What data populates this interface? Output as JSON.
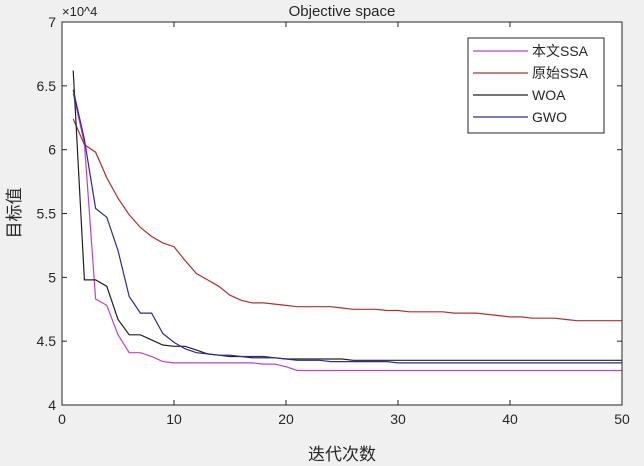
{
  "chart_data": {
    "type": "line",
    "title": "Objective space",
    "xlabel": "迭代次数",
    "ylabel": "目标值",
    "y_exponent_label": "×10^4",
    "xlim": [
      0,
      50
    ],
    "ylim": [
      4,
      7
    ],
    "xticks": [
      0,
      10,
      20,
      30,
      40,
      50
    ],
    "yticks": [
      4,
      4.5,
      5,
      5.5,
      6,
      6.5,
      7
    ],
    "ytick_labels": [
      "4",
      "4.5",
      "5",
      "5.5",
      "6",
      "6.5",
      "7"
    ],
    "legend_position": "top-right",
    "x": [
      1,
      2,
      3,
      4,
      5,
      6,
      7,
      8,
      9,
      10,
      11,
      12,
      13,
      14,
      15,
      16,
      17,
      18,
      19,
      20,
      21,
      22,
      23,
      24,
      25,
      26,
      27,
      28,
      29,
      30,
      31,
      32,
      33,
      34,
      35,
      36,
      37,
      38,
      39,
      40,
      41,
      42,
      43,
      44,
      45,
      46,
      47,
      48,
      49,
      50
    ],
    "series": [
      {
        "name": "本文SSA",
        "color": "#c040c8",
        "values": [
          6.44,
          6.05,
          4.83,
          4.78,
          4.55,
          4.41,
          4.41,
          4.38,
          4.34,
          4.33,
          4.33,
          4.33,
          4.33,
          4.33,
          4.33,
          4.33,
          4.33,
          4.32,
          4.32,
          4.3,
          4.27,
          4.27,
          4.27,
          4.27,
          4.27,
          4.27,
          4.27,
          4.27,
          4.27,
          4.27,
          4.27,
          4.27,
          4.27,
          4.27,
          4.27,
          4.27,
          4.27,
          4.27,
          4.27,
          4.27,
          4.27,
          4.27,
          4.27,
          4.27,
          4.27,
          4.27,
          4.27,
          4.27,
          4.27,
          4.27
        ]
      },
      {
        "name": "原始SSA",
        "color": "#b03030",
        "values": [
          6.24,
          6.04,
          5.98,
          5.78,
          5.62,
          5.49,
          5.39,
          5.32,
          5.27,
          5.24,
          5.13,
          5.03,
          4.98,
          4.93,
          4.86,
          4.82,
          4.8,
          4.8,
          4.79,
          4.78,
          4.77,
          4.77,
          4.77,
          4.77,
          4.76,
          4.75,
          4.75,
          4.75,
          4.74,
          4.74,
          4.73,
          4.73,
          4.73,
          4.73,
          4.72,
          4.72,
          4.72,
          4.71,
          4.7,
          4.69,
          4.69,
          4.68,
          4.68,
          4.68,
          4.67,
          4.66,
          4.66,
          4.66,
          4.66,
          4.66
        ]
      },
      {
        "name": "WOA",
        "color": "#202020",
        "values": [
          6.62,
          4.98,
          4.98,
          4.93,
          4.67,
          4.55,
          4.55,
          4.51,
          4.47,
          4.46,
          4.46,
          4.43,
          4.4,
          4.39,
          4.38,
          4.38,
          4.37,
          4.37,
          4.37,
          4.36,
          4.36,
          4.36,
          4.36,
          4.36,
          4.36,
          4.35,
          4.35,
          4.35,
          4.35,
          4.35,
          4.35,
          4.35,
          4.35,
          4.35,
          4.35,
          4.35,
          4.35,
          4.35,
          4.35,
          4.35,
          4.35,
          4.35,
          4.35,
          4.35,
          4.35,
          4.35,
          4.35,
          4.35,
          4.35,
          4.35
        ]
      },
      {
        "name": "GWO",
        "color": "#2a2a9a",
        "values": [
          6.47,
          6.08,
          5.54,
          5.47,
          5.21,
          4.85,
          4.72,
          4.72,
          4.56,
          4.49,
          4.44,
          4.41,
          4.4,
          4.39,
          4.39,
          4.38,
          4.38,
          4.38,
          4.37,
          4.36,
          4.35,
          4.35,
          4.35,
          4.34,
          4.34,
          4.34,
          4.34,
          4.34,
          4.34,
          4.33,
          4.33,
          4.33,
          4.33,
          4.33,
          4.33,
          4.33,
          4.33,
          4.33,
          4.33,
          4.33,
          4.33,
          4.33,
          4.33,
          4.33,
          4.33,
          4.33,
          4.33,
          4.33,
          4.33,
          4.33
        ]
      }
    ]
  }
}
